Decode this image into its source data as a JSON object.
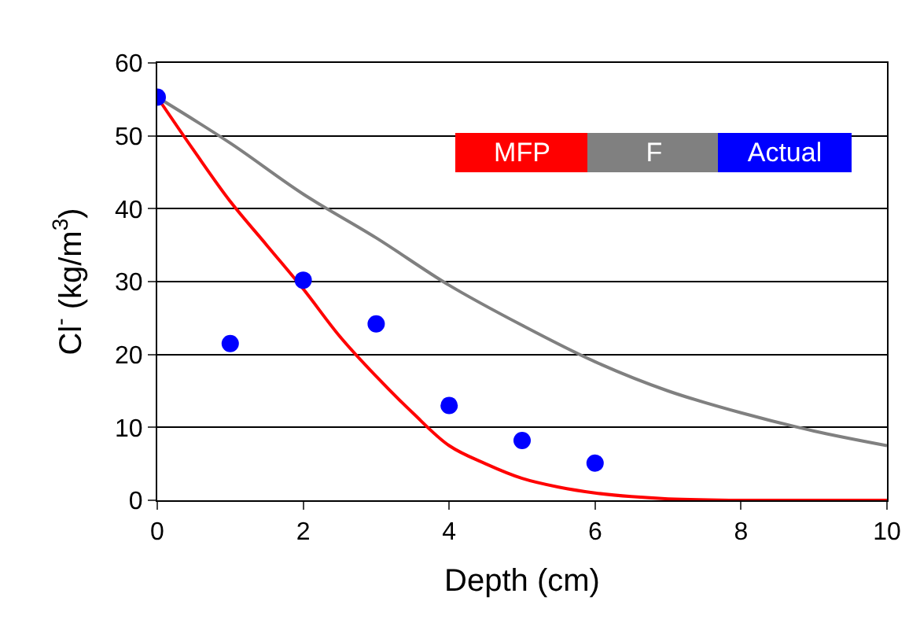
{
  "chart_data": {
    "type": "line",
    "xlabel": "Depth (cm)",
    "ylabel": "Cl$^{-}$ (kg/m$^{3}$)",
    "xlim": [
      0,
      10
    ],
    "xticks": [
      0,
      2,
      4,
      6,
      8,
      10
    ],
    "ylim": [
      0,
      60
    ],
    "yticks": [
      0,
      10,
      20,
      30,
      40,
      50,
      60
    ],
    "grid": "y",
    "legend": "top right",
    "series": [
      {
        "name": "MFP",
        "color": "#ff0000",
        "x": [
          0,
          0.5,
          1,
          1.5,
          2,
          2.5,
          3,
          3.5,
          4,
          4.5,
          5,
          5.5,
          6,
          6.5,
          7,
          8,
          9,
          10
        ],
        "values": [
          55.3,
          48,
          41,
          35,
          29,
          22.5,
          17,
          12,
          7.5,
          5,
          3,
          1.8,
          1,
          0.5,
          0.2,
          0,
          0,
          0
        ]
      },
      {
        "name": "F",
        "color": "#808080",
        "x": [
          0,
          1,
          2,
          3,
          4,
          5,
          6,
          7,
          8,
          9,
          10
        ],
        "values": [
          55.3,
          49,
          42,
          36,
          29.5,
          24,
          19,
          15,
          12,
          9.5,
          7.5
        ]
      },
      {
        "name": "Actual",
        "color": "#0000ff",
        "type": "scatter",
        "marker": "circle",
        "x": [
          0,
          1,
          2,
          3,
          4,
          5,
          6
        ],
        "values": [
          55.3,
          21.5,
          30.2,
          24.2,
          13,
          8.2,
          5.1
        ]
      }
    ]
  }
}
